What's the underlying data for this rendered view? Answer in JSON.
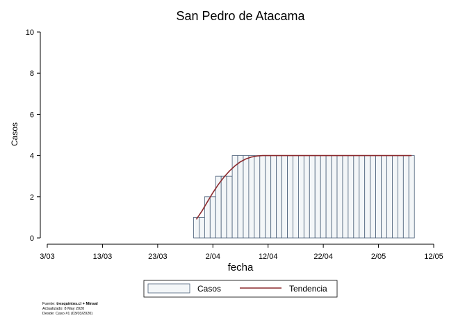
{
  "chart_data": {
    "type": "bar",
    "title": "San Pedro de Atacama",
    "xlabel": "fecha",
    "ylabel": "Casos",
    "ylim": [
      0,
      10
    ],
    "yticks": [
      0,
      2,
      4,
      6,
      8,
      10
    ],
    "xlim": [
      "2020-03-03",
      "2020-05-12"
    ],
    "xticks": [
      "3/03",
      "13/03",
      "23/03",
      "2/04",
      "12/04",
      "22/04",
      "2/05",
      "12/05"
    ],
    "grid": false,
    "legend_position": "bottom",
    "series": [
      {
        "name": "Casos",
        "kind": "bar",
        "color": "#f3f6f8",
        "edgecolor": "#4a5f78",
        "dates": [
          "2020-03-30",
          "2020-03-31",
          "2020-04-01",
          "2020-04-02",
          "2020-04-03",
          "2020-04-04",
          "2020-04-05",
          "2020-04-06",
          "2020-04-07",
          "2020-04-08",
          "2020-04-09",
          "2020-04-10",
          "2020-04-11",
          "2020-04-12",
          "2020-04-13",
          "2020-04-14",
          "2020-04-15",
          "2020-04-16",
          "2020-04-17",
          "2020-04-18",
          "2020-04-19",
          "2020-04-20",
          "2020-04-21",
          "2020-04-22",
          "2020-04-23",
          "2020-04-24",
          "2020-04-25",
          "2020-04-26",
          "2020-04-27",
          "2020-04-28",
          "2020-04-29",
          "2020-04-30",
          "2020-05-01",
          "2020-05-02",
          "2020-05-03",
          "2020-05-04",
          "2020-05-05",
          "2020-05-06",
          "2020-05-07",
          "2020-05-08"
        ],
        "values": [
          1,
          1,
          2,
          2,
          3,
          3,
          3,
          4,
          4,
          4,
          4,
          4,
          4,
          4,
          4,
          4,
          4,
          4,
          4,
          4,
          4,
          4,
          4,
          4,
          4,
          4,
          4,
          4,
          4,
          4,
          4,
          4,
          4,
          4,
          4,
          4,
          4,
          4,
          4,
          4
        ]
      },
      {
        "name": "Tendencia",
        "kind": "line",
        "color": "#8b2a2e",
        "dates": [
          "2020-03-30",
          "2020-03-31",
          "2020-04-01",
          "2020-04-02",
          "2020-04-03",
          "2020-04-04",
          "2020-04-05",
          "2020-04-06",
          "2020-04-07",
          "2020-04-08",
          "2020-04-09",
          "2020-04-10",
          "2020-04-11",
          "2020-04-12",
          "2020-04-13",
          "2020-04-14",
          "2020-04-15",
          "2020-04-16",
          "2020-04-17",
          "2020-04-18",
          "2020-04-19",
          "2020-04-20",
          "2020-04-21",
          "2020-04-22",
          "2020-04-23",
          "2020-04-24",
          "2020-04-25",
          "2020-04-26",
          "2020-04-27",
          "2020-04-28",
          "2020-04-29",
          "2020-04-30",
          "2020-05-01",
          "2020-05-02",
          "2020-05-03",
          "2020-05-04",
          "2020-05-05",
          "2020-05-06",
          "2020-05-07",
          "2020-05-08"
        ],
        "values": [
          0.9,
          1.3,
          1.75,
          2.2,
          2.6,
          2.95,
          3.25,
          3.5,
          3.7,
          3.84,
          3.93,
          3.98,
          4,
          4,
          4,
          4,
          4,
          4,
          4,
          4,
          4,
          4,
          4,
          4,
          4,
          4,
          4,
          4,
          4,
          4,
          4,
          4,
          4,
          4,
          4,
          4,
          4,
          4,
          4,
          4
        ]
      }
    ]
  },
  "footer": {
    "source_prefix": "Fuente: ",
    "source_bold": "tresquintos.cl + Minsal",
    "updated": "Actualizado: 8 May 2020",
    "since": "Desde: Caso #1  (03/03/2020)"
  }
}
